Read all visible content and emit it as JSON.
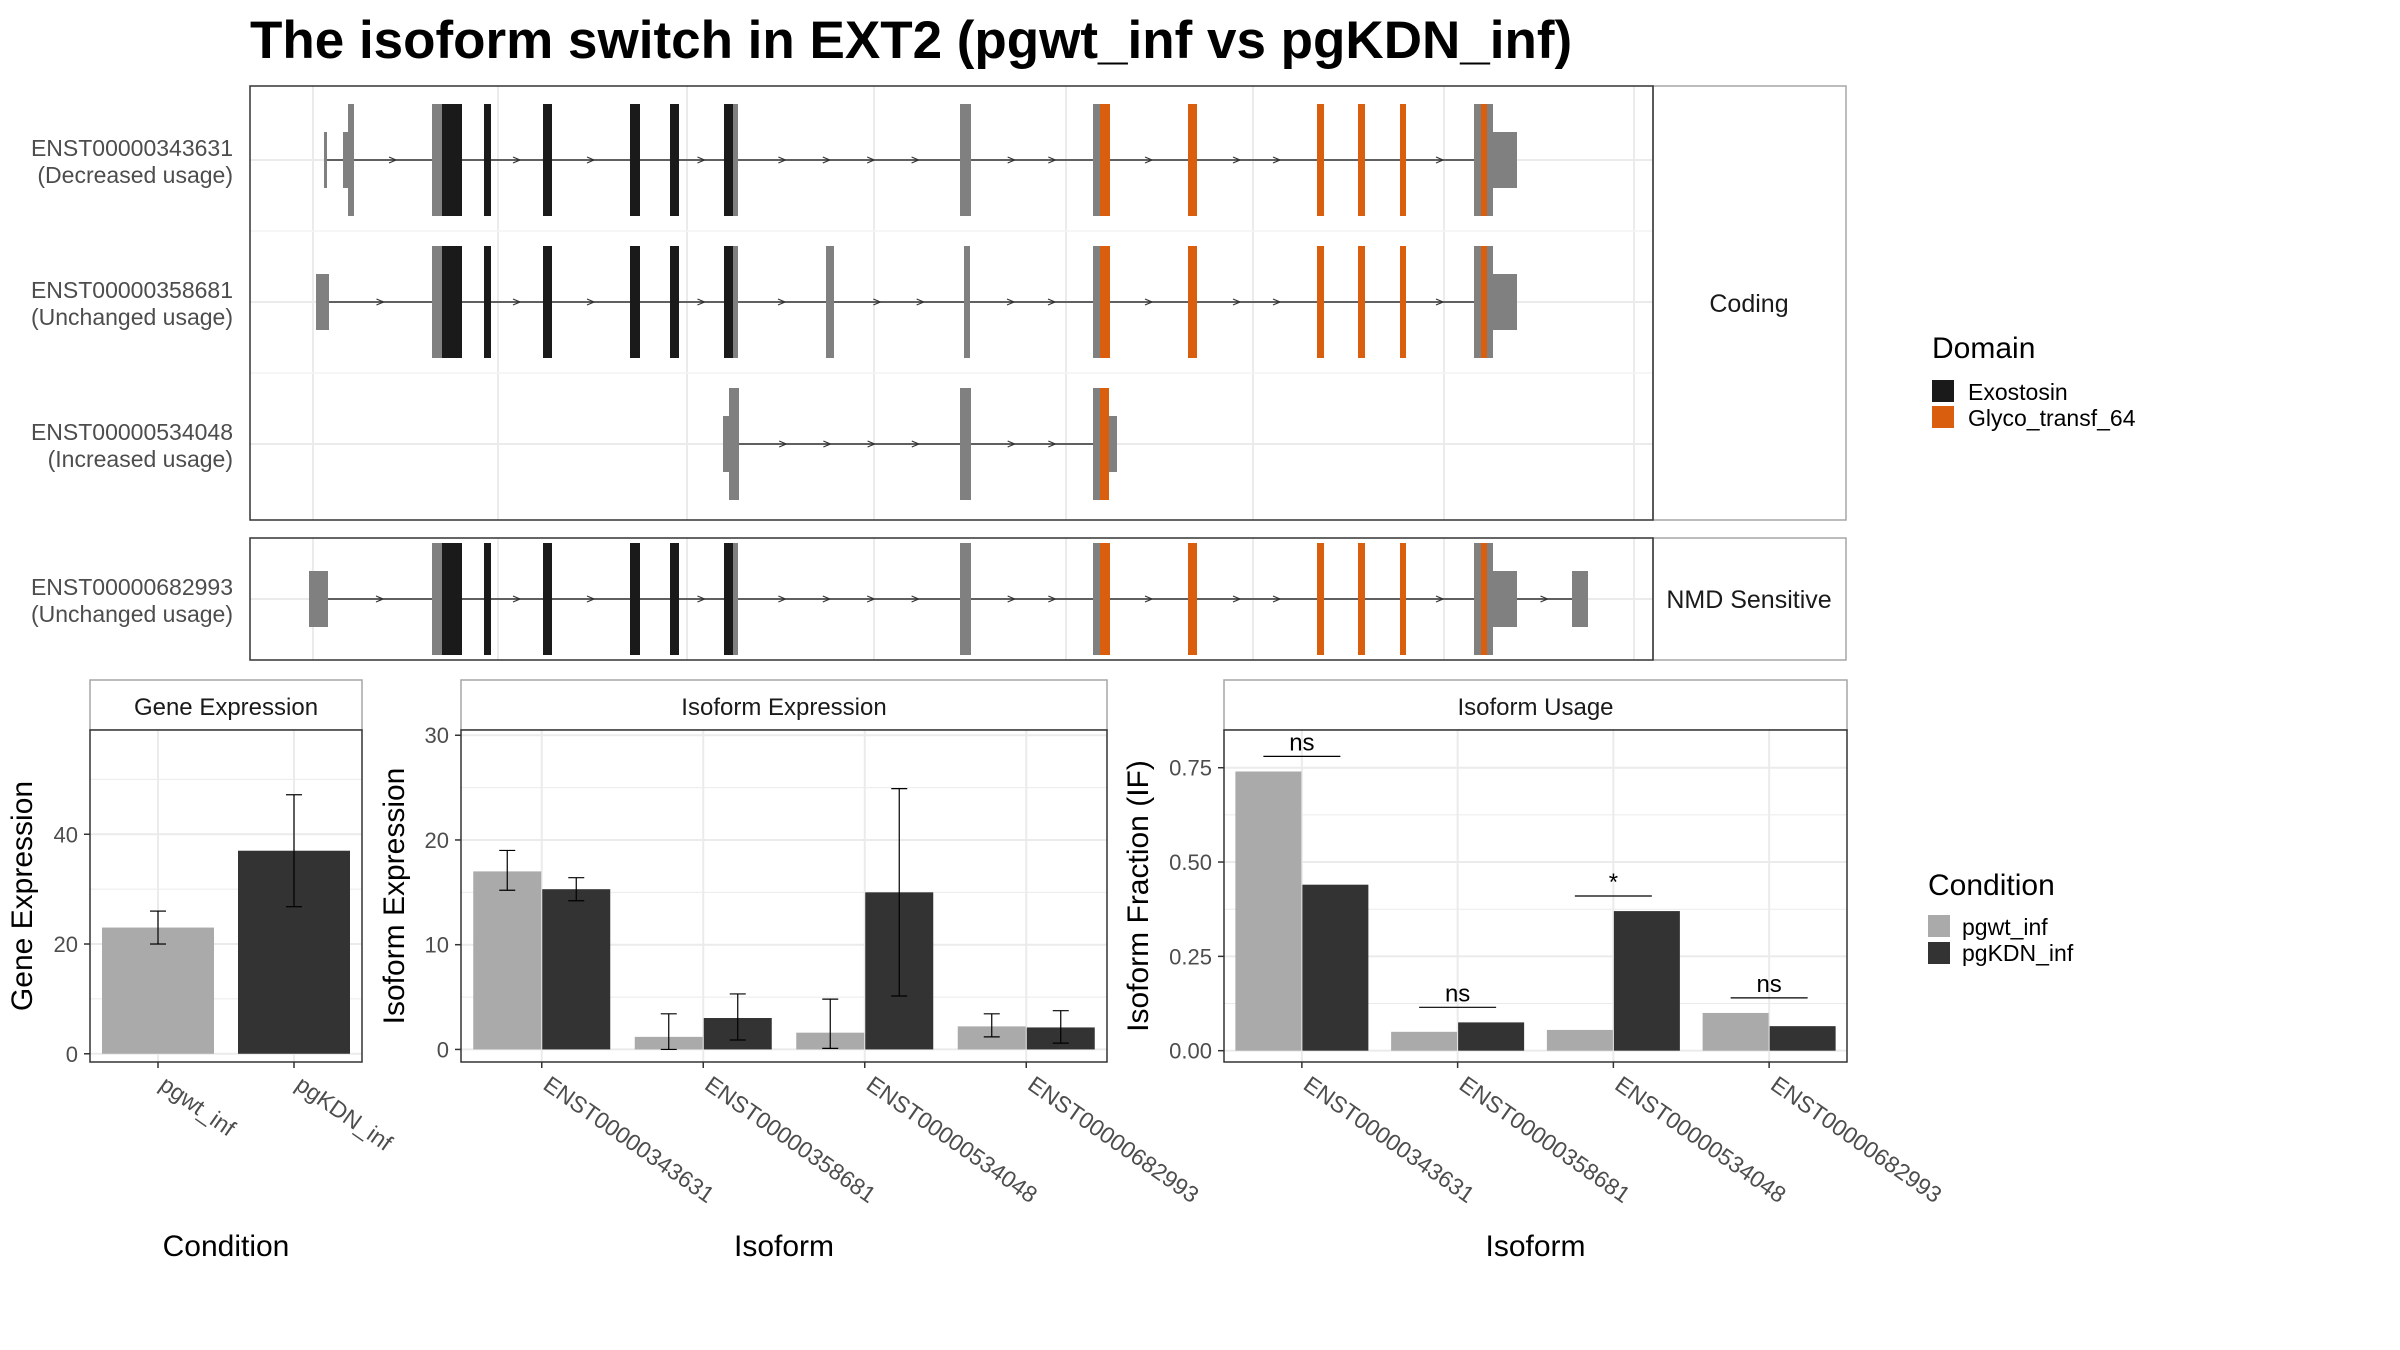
{
  "title": "The isoform switch in EXT2 (pgwt_inf vs pgKDN_inf)",
  "colors": {
    "exostosin": "#1a1a1a",
    "glyco": "#d95f0e",
    "utr": "#808080",
    "pgwt": "#aaaaaa",
    "pgkdn": "#333333",
    "grid": "#ebebeb",
    "panel_border": "#333333",
    "strip_border": "#a6a6a6",
    "axis_text": "#4d4d4d"
  },
  "isoform_panels": [
    {
      "strip": "Coding",
      "transcripts": [
        {
          "id": "ENST00000343631",
          "usage": "(Decreased usage)"
        },
        {
          "id": "ENST00000358681",
          "usage": "(Unchanged usage)"
        },
        {
          "id": "ENST00000534048",
          "usage": "(Increased usage)"
        }
      ]
    },
    {
      "strip": "NMD Sensitive",
      "transcripts": [
        {
          "id": "ENST00000682993",
          "usage": "(Unchanged usage)"
        }
      ]
    }
  ],
  "legends": {
    "domain": {
      "title": "Domain",
      "items": [
        "Exostosin",
        "Glyco_transf_64"
      ]
    },
    "condition": {
      "title": "Condition",
      "items": [
        "pgwt_inf",
        "pgKDN_inf"
      ]
    }
  },
  "chart_data": [
    {
      "type": "bar",
      "strip": "Gene Expression",
      "xlabel": "Condition",
      "ylabel": "Gene Expression",
      "categories": [
        "pgwt_inf",
        "pgKDN_inf"
      ],
      "values": [
        23.0,
        37.0
      ],
      "error_low": [
        20.0,
        26.8
      ],
      "error_high": [
        26.0,
        47.2
      ],
      "ylim": [
        -1.5,
        59
      ],
      "yticks": [
        0,
        20,
        40
      ],
      "ytick_labels": [
        "0",
        "20",
        "40"
      ]
    },
    {
      "type": "bar",
      "strip": "Isoform Expression",
      "xlabel": "Isoform",
      "ylabel": "Isoform Expression",
      "categories": [
        "ENST00000343631",
        "ENST00000358681",
        "ENST00000534048",
        "ENST00000682993"
      ],
      "series": [
        {
          "name": "pgwt_inf",
          "values": [
            17.0,
            1.2,
            1.6,
            2.2
          ],
          "error_low": [
            15.2,
            0,
            0.1,
            1.2
          ],
          "error_high": [
            19.0,
            3.4,
            4.8,
            3.4
          ]
        },
        {
          "name": "pgKDN_inf",
          "values": [
            15.3,
            3.0,
            15.0,
            2.1
          ],
          "error_low": [
            14.2,
            0.9,
            5.1,
            0.6
          ],
          "error_high": [
            16.4,
            5.3,
            24.9,
            3.7
          ]
        }
      ],
      "ylim": [
        -1.2,
        30.5
      ],
      "yticks": [
        0,
        10,
        20,
        30
      ],
      "ytick_labels": [
        "0",
        "10",
        "20",
        "30"
      ]
    },
    {
      "type": "bar",
      "strip": "Isoform Usage",
      "xlabel": "Isoform",
      "ylabel": "Isoform Fraction (IF)",
      "categories": [
        "ENST00000343631",
        "ENST00000358681",
        "ENST00000534048",
        "ENST00000682993"
      ],
      "series": [
        {
          "name": "pgwt_inf",
          "values": [
            0.74,
            0.05,
            0.055,
            0.1
          ]
        },
        {
          "name": "pgKDN_inf",
          "values": [
            0.44,
            0.075,
            0.37,
            0.065
          ]
        }
      ],
      "significance": [
        "ns",
        "ns",
        "*",
        "ns"
      ],
      "significance_y": [
        0.78,
        0.115,
        0.41,
        0.14
      ],
      "ylim": [
        -0.03,
        0.85
      ],
      "yticks": [
        0,
        0.25,
        0.5,
        0.75
      ],
      "ytick_labels": [
        "0.00",
        "0.25",
        "0.50",
        "0.75"
      ]
    }
  ]
}
